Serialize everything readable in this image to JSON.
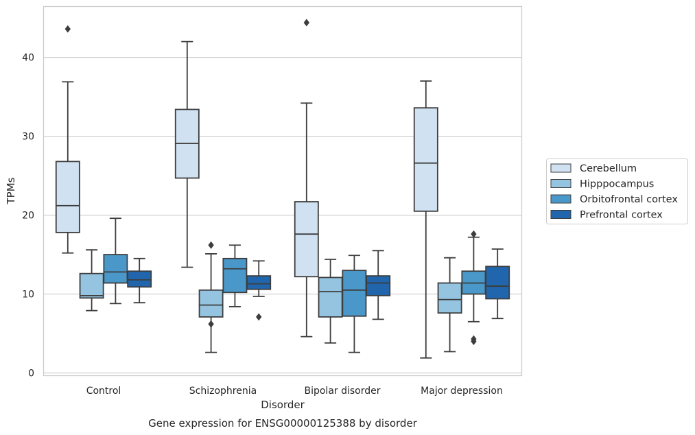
{
  "chart_data": {
    "type": "boxplot",
    "caption": "Gene expression for ENSG00000125388 by disorder",
    "xlabel": "Disorder",
    "ylabel": "TPMs",
    "ylim": [
      -0.3,
      46.4
    ],
    "yticks": [
      0,
      10,
      20,
      30,
      40
    ],
    "grid": "horizontal",
    "legend_position": "right",
    "categories": [
      "Control",
      "Schizophrenia",
      "Bipolar disorder",
      "Major depression"
    ],
    "series": [
      {
        "name": "Cerebellum",
        "color": "#d0e1f2",
        "boxes": [
          {
            "whislo": 15.2,
            "q1": 17.8,
            "med": 21.2,
            "q3": 26.8,
            "whishi": 36.9,
            "fliers": [
              43.6
            ]
          },
          {
            "whislo": 13.4,
            "q1": 24.7,
            "med": 29.1,
            "q3": 33.4,
            "whishi": 42.0,
            "fliers": []
          },
          {
            "whislo": 4.6,
            "q1": 12.2,
            "med": 17.6,
            "q3": 21.7,
            "whishi": 34.2,
            "fliers": [
              44.4
            ]
          },
          {
            "whislo": 1.9,
            "q1": 20.5,
            "med": 26.6,
            "q3": 33.6,
            "whishi": 37.0,
            "fliers": []
          }
        ]
      },
      {
        "name": "Hipppocampus",
        "color": "#94c4df",
        "boxes": [
          {
            "whislo": 7.9,
            "q1": 9.5,
            "med": 9.8,
            "q3": 12.6,
            "whishi": 15.6,
            "fliers": []
          },
          {
            "whislo": 2.6,
            "q1": 7.1,
            "med": 8.6,
            "q3": 10.5,
            "whishi": 15.1,
            "fliers": [
              6.2,
              16.2
            ]
          },
          {
            "whislo": 3.8,
            "q1": 7.1,
            "med": 10.3,
            "q3": 12.1,
            "whishi": 14.4,
            "fliers": []
          },
          {
            "whislo": 2.7,
            "q1": 7.6,
            "med": 9.3,
            "q3": 11.4,
            "whishi": 14.6,
            "fliers": []
          }
        ]
      },
      {
        "name": "Orbitofrontal cortex",
        "color": "#4a98c9",
        "boxes": [
          {
            "whislo": 8.8,
            "q1": 11.4,
            "med": 12.8,
            "q3": 15.0,
            "whishi": 19.6,
            "fliers": []
          },
          {
            "whislo": 8.4,
            "q1": 10.2,
            "med": 13.2,
            "q3": 14.5,
            "whishi": 16.2,
            "fliers": []
          },
          {
            "whislo": 2.6,
            "q1": 7.2,
            "med": 10.5,
            "q3": 13.0,
            "whishi": 14.9,
            "fliers": []
          },
          {
            "whislo": 6.5,
            "q1": 10.0,
            "med": 11.4,
            "q3": 12.9,
            "whishi": 17.2,
            "fliers": [
              17.6,
              4.0,
              4.3
            ]
          }
        ]
      },
      {
        "name": "Prefrontal cortex",
        "color": "#2166ac",
        "boxes": [
          {
            "whislo": 8.9,
            "q1": 10.9,
            "med": 11.8,
            "q3": 12.9,
            "whishi": 14.5,
            "fliers": []
          },
          {
            "whislo": 9.7,
            "q1": 10.6,
            "med": 11.3,
            "q3": 12.3,
            "whishi": 14.2,
            "fliers": [
              7.1
            ]
          },
          {
            "whislo": 6.8,
            "q1": 9.8,
            "med": 11.4,
            "q3": 12.3,
            "whishi": 15.5,
            "fliers": []
          },
          {
            "whislo": 6.9,
            "q1": 9.4,
            "med": 11.0,
            "q3": 13.5,
            "whishi": 15.7,
            "fliers": []
          }
        ]
      }
    ]
  }
}
